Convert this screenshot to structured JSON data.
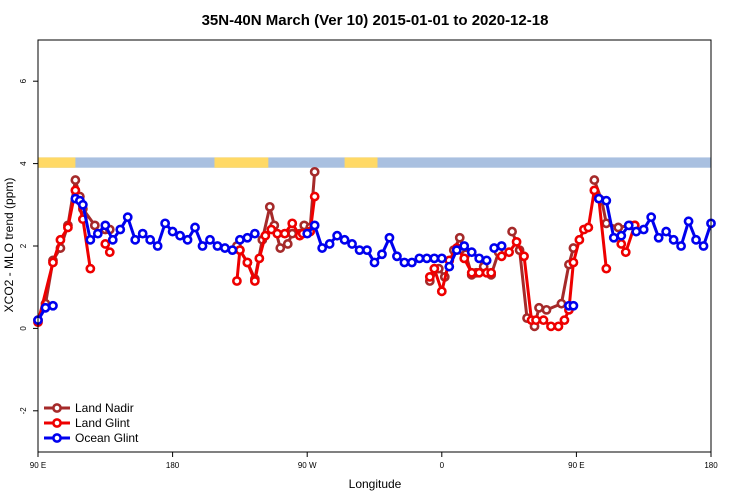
{
  "chart_data": {
    "type": "line",
    "title": "35N-40N March (Ver 10)   2015-01-01 to 2020-12-18",
    "xlabel": "Longitude",
    "ylabel": "XCO2 - MLO trend (ppm)",
    "xlim": [
      0,
      360
    ],
    "ylim": [
      -3,
      7
    ],
    "x_ticks": [
      {
        "value": 0,
        "label": "90 E"
      },
      {
        "value": 90,
        "label": "180"
      },
      {
        "value": 180,
        "label": "90 W"
      },
      {
        "value": 270,
        "label": "0"
      },
      {
        "value": 360,
        "label": "90 E"
      },
      {
        "value": 450,
        "label": "180"
      }
    ],
    "y_ticks": [
      -2,
      0,
      2,
      4,
      6
    ],
    "grid": false,
    "legend_position": "bottom-left",
    "land_ocean_strip": {
      "y_range": [
        3.9,
        4.15
      ],
      "land_color": "#FFD966",
      "ocean_color": "#A9C0E0",
      "land_segments": [
        [
          0,
          25
        ],
        [
          118,
          154
        ],
        [
          205,
          227
        ]
      ]
    },
    "series": [
      {
        "name": "Land Nadir",
        "color": "#A52A2A",
        "segments": [
          {
            "x": [
              0,
              5,
              10,
              15,
              20,
              25,
              28,
              30,
              38
            ],
            "y": [
              0.2,
              0.6,
              1.65,
              1.95,
              2.5,
              3.6,
              3.2,
              2.9,
              2.5
            ]
          },
          {
            "x": [
              45,
              48
            ],
            "y": [
              2.4,
              2.4
            ]
          },
          {
            "x": [
              133,
              135,
              140,
              145,
              150,
              155,
              158,
              162,
              167,
              170,
              175,
              178,
              182,
              185
            ],
            "y": [
              2.0,
              1.9,
              1.6,
              1.2,
              2.15,
              2.95,
              2.5,
              1.95,
              2.05,
              2.3,
              2.3,
              2.5,
              2.45,
              3.8
            ]
          },
          {
            "x": [
              262,
              268,
              272,
              278,
              282,
              286,
              290,
              293,
              298,
              303,
              308
            ],
            "y": [
              1.15,
              1.45,
              1.25,
              1.9,
              2.2,
              1.8,
              1.3,
              1.35,
              1.5,
              1.3,
              1.85
            ]
          },
          {
            "x": [
              317,
              322,
              327,
              332,
              335
            ],
            "y": [
              2.35,
              1.9,
              0.25,
              0.05,
              0.5
            ]
          },
          {
            "x": [
              340,
              350,
              355,
              358
            ],
            "y": [
              0.45,
              0.6,
              1.55,
              1.95
            ]
          },
          {
            "x": [
              372,
              377,
              380,
              388,
              396,
              399
            ],
            "y": [
              3.6,
              3.1,
              2.55,
              2.45,
              2.5,
              2.5
            ]
          }
        ]
      },
      {
        "name": "Land Glint",
        "color": "#EE0000",
        "segments": [
          {
            "x": [
              0,
              10,
              15,
              20,
              25,
              30,
              35
            ],
            "y": [
              0.15,
              1.6,
              2.15,
              2.45,
              3.35,
              2.65,
              1.45
            ]
          },
          {
            "x": [
              45,
              48
            ],
            "y": [
              2.05,
              1.85
            ]
          },
          {
            "x": [
              133,
              135,
              140,
              145,
              148,
              152,
              156,
              160,
              165,
              170,
              175,
              177,
              182,
              185
            ],
            "y": [
              1.15,
              1.9,
              1.6,
              1.15,
              1.7,
              2.25,
              2.4,
              2.3,
              2.3,
              2.55,
              2.25,
              2.3,
              2.35,
              3.2
            ]
          },
          {
            "x": [
              262,
              265,
              270,
              275,
              280,
              285,
              290,
              295,
              300,
              303
            ],
            "y": [
              1.25,
              1.45,
              0.9,
              1.65,
              1.95,
              1.7,
              1.35,
              1.35,
              1.35,
              1.35
            ]
          },
          {
            "x": [
              310,
              315,
              320,
              325,
              330,
              333,
              338,
              343,
              348,
              352,
              355,
              358,
              362,
              365,
              368,
              372,
              375,
              380
            ],
            "y": [
              1.75,
              1.85,
              2.1,
              1.75,
              0.2,
              0.2,
              0.2,
              0.05,
              0.05,
              0.2,
              0.45,
              1.6,
              2.15,
              2.4,
              2.45,
              3.35,
              3.15,
              1.45
            ]
          },
          {
            "x": [
              390,
              393,
              399
            ],
            "y": [
              2.05,
              1.85,
              2.5
            ]
          }
        ]
      },
      {
        "name": "Ocean Glint",
        "color": "#0000EE",
        "segments": [
          {
            "x": [
              0,
              5,
              10
            ],
            "y": [
              0.2,
              0.5,
              0.55
            ]
          },
          {
            "x": [
              25,
              28,
              30,
              35,
              40,
              45,
              50,
              55,
              60,
              65,
              70,
              75,
              80,
              85,
              90,
              95,
              100,
              105,
              110,
              115,
              120,
              125,
              130
            ],
            "y": [
              3.15,
              3.1,
              3.0,
              2.15,
              2.3,
              2.5,
              2.15,
              2.4,
              2.7,
              2.15,
              2.3,
              2.15,
              2.0,
              2.55,
              2.35,
              2.25,
              2.15,
              2.45,
              2.0,
              2.15,
              2.0,
              1.95,
              1.9
            ]
          },
          {
            "x": [
              135,
              140,
              145
            ],
            "y": [
              2.15,
              2.2,
              2.3
            ]
          },
          {
            "x": [
              180,
              185,
              190,
              195,
              200,
              205,
              210,
              215,
              220,
              225,
              230,
              235,
              240,
              245,
              250,
              255,
              260,
              265,
              270
            ],
            "y": [
              2.3,
              2.5,
              1.95,
              2.05,
              2.25,
              2.15,
              2.05,
              1.9,
              1.9,
              1.6,
              1.8,
              2.2,
              1.75,
              1.6,
              1.6,
              1.7,
              1.7,
              1.7,
              1.7
            ]
          },
          {
            "x": [
              275,
              280,
              285,
              290,
              295,
              300
            ],
            "y": [
              1.5,
              1.9,
              2.0,
              1.85,
              1.7,
              1.65
            ]
          },
          {
            "x": [
              305,
              310
            ],
            "y": [
              1.95,
              2.0
            ]
          },
          {
            "x": [
              355,
              358
            ],
            "y": [
              0.55,
              0.55
            ]
          },
          {
            "x": [
              375,
              380,
              385,
              390,
              395,
              400,
              405,
              410,
              415,
              420,
              425,
              430,
              435,
              440,
              445,
              450
            ],
            "y": [
              3.15,
              3.1,
              2.2,
              2.25,
              2.5,
              2.35,
              2.4,
              2.7,
              2.2,
              2.35,
              2.15,
              2.0,
              2.6,
              2.15,
              2.0,
              2.55
            ]
          }
        ]
      }
    ]
  }
}
